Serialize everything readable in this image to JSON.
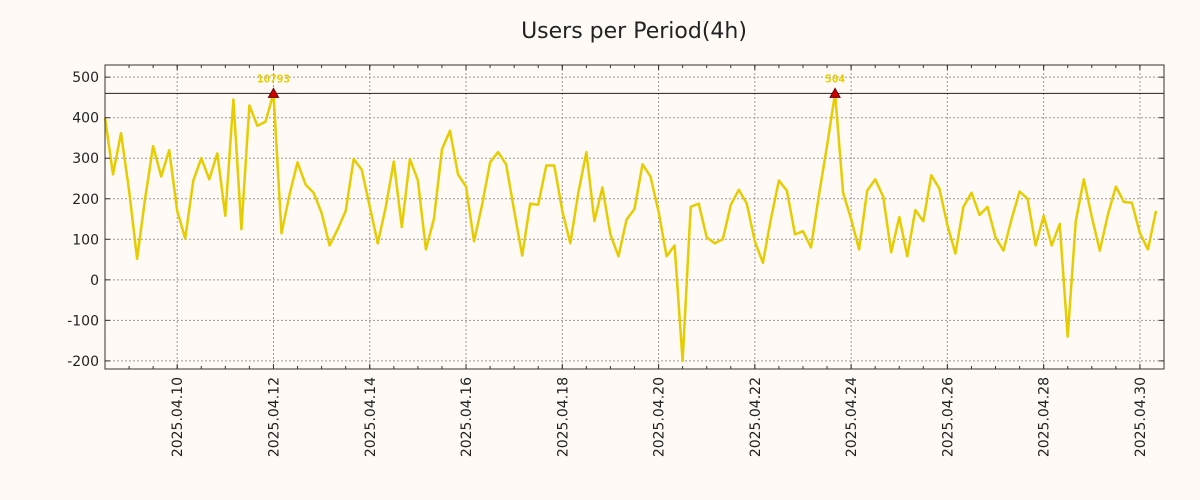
{
  "chart_data": {
    "type": "line",
    "title": "Users per Period(4h)",
    "xlabel": "",
    "ylabel": "",
    "x_range": [
      "2025-04-08 12:00",
      "2025-04-30 12:00"
    ],
    "ylim": [
      -220,
      530
    ],
    "y_ticks": [
      -200,
      -100,
      0,
      100,
      200,
      300,
      400,
      500
    ],
    "x_tick_labels": [
      "2025.04.10",
      "2025.04.12",
      "2025.04.14",
      "2025.04.16",
      "2025.04.18",
      "2025.04.20",
      "2025.04.22",
      "2025.04.24",
      "2025.04.26",
      "2025.04.28",
      "2025.04.30"
    ],
    "x_tick_dates": [
      "2025-04-10",
      "2025-04-12",
      "2025-04-14",
      "2025-04-16",
      "2025-04-18",
      "2025-04-20",
      "2025-04-22",
      "2025-04-24",
      "2025-04-26",
      "2025-04-28",
      "2025-04-30"
    ],
    "grid": true,
    "reference_line": 460,
    "series": [
      {
        "color": "#e6cc00",
        "points": [
          [
            "2025-04-08 12:00",
            400
          ],
          [
            "2025-04-08 16:00",
            260
          ],
          [
            "2025-04-08 20:00",
            362
          ],
          [
            "2025-04-09 00:00",
            220
          ],
          [
            "2025-04-09 04:00",
            52
          ],
          [
            "2025-04-09 08:00",
            200
          ],
          [
            "2025-04-09 12:00",
            330
          ],
          [
            "2025-04-09 16:00",
            255
          ],
          [
            "2025-04-09 20:00",
            320
          ],
          [
            "2025-04-10 00:00",
            170
          ],
          [
            "2025-04-10 04:00",
            102
          ],
          [
            "2025-04-10 08:00",
            245
          ],
          [
            "2025-04-10 12:00",
            300
          ],
          [
            "2025-04-10 16:00",
            248
          ],
          [
            "2025-04-10 20:00",
            312
          ],
          [
            "2025-04-11 00:00",
            158
          ],
          [
            "2025-04-11 04:00",
            445
          ],
          [
            "2025-04-11 08:00",
            125
          ],
          [
            "2025-04-11 12:00",
            430
          ],
          [
            "2025-04-11 16:00",
            380
          ],
          [
            "2025-04-11 20:00",
            390
          ],
          [
            "2025-04-12 00:00",
            460
          ],
          [
            "2025-04-12 04:00",
            115
          ],
          [
            "2025-04-12 08:00",
            210
          ],
          [
            "2025-04-12 12:00",
            290
          ],
          [
            "2025-04-12 16:00",
            235
          ],
          [
            "2025-04-12 20:00",
            215
          ],
          [
            "2025-04-13 00:00",
            165
          ],
          [
            "2025-04-13 04:00",
            85
          ],
          [
            "2025-04-13 08:00",
            125
          ],
          [
            "2025-04-13 12:00",
            170
          ],
          [
            "2025-04-13 16:00",
            298
          ],
          [
            "2025-04-13 20:00",
            272
          ],
          [
            "2025-04-14 00:00",
            180
          ],
          [
            "2025-04-14 04:00",
            90
          ],
          [
            "2025-04-14 08:00",
            180
          ],
          [
            "2025-04-14 12:00",
            292
          ],
          [
            "2025-04-14 16:00",
            130
          ],
          [
            "2025-04-14 20:00",
            298
          ],
          [
            "2025-04-15 00:00",
            245
          ],
          [
            "2025-04-15 04:00",
            75
          ],
          [
            "2025-04-15 08:00",
            150
          ],
          [
            "2025-04-15 12:00",
            322
          ],
          [
            "2025-04-15 16:00",
            368
          ],
          [
            "2025-04-15 20:00",
            260
          ],
          [
            "2025-04-16 00:00",
            230
          ],
          [
            "2025-04-16 04:00",
            95
          ],
          [
            "2025-04-16 08:00",
            185
          ],
          [
            "2025-04-16 12:00",
            290
          ],
          [
            "2025-04-16 16:00",
            315
          ],
          [
            "2025-04-16 20:00",
            285
          ],
          [
            "2025-04-17 00:00",
            170
          ],
          [
            "2025-04-17 04:00",
            60
          ],
          [
            "2025-04-17 08:00",
            188
          ],
          [
            "2025-04-17 12:00",
            185
          ],
          [
            "2025-04-17 16:00",
            282
          ],
          [
            "2025-04-17 20:00",
            282
          ],
          [
            "2025-04-18 00:00",
            170
          ],
          [
            "2025-04-18 04:00",
            90
          ],
          [
            "2025-04-18 08:00",
            215
          ],
          [
            "2025-04-18 12:00",
            315
          ],
          [
            "2025-04-18 16:00",
            145
          ],
          [
            "2025-04-18 20:00",
            228
          ],
          [
            "2025-04-19 00:00",
            112
          ],
          [
            "2025-04-19 04:00",
            58
          ],
          [
            "2025-04-19 08:00",
            148
          ],
          [
            "2025-04-19 12:00",
            175
          ],
          [
            "2025-04-19 16:00",
            285
          ],
          [
            "2025-04-19 20:00",
            255
          ],
          [
            "2025-04-20 00:00",
            168
          ],
          [
            "2025-04-20 04:00",
            58
          ],
          [
            "2025-04-20 08:00",
            85
          ],
          [
            "2025-04-20 12:00",
            -200
          ],
          [
            "2025-04-20 16:00",
            180
          ],
          [
            "2025-04-20 20:00",
            188
          ],
          [
            "2025-04-21 00:00",
            105
          ],
          [
            "2025-04-21 04:00",
            90
          ],
          [
            "2025-04-21 08:00",
            100
          ],
          [
            "2025-04-21 12:00",
            185
          ],
          [
            "2025-04-21 16:00",
            222
          ],
          [
            "2025-04-21 20:00",
            188
          ],
          [
            "2025-04-22 00:00",
            95
          ],
          [
            "2025-04-22 04:00",
            42
          ],
          [
            "2025-04-22 08:00",
            150
          ],
          [
            "2025-04-22 12:00",
            245
          ],
          [
            "2025-04-22 16:00",
            220
          ],
          [
            "2025-04-22 20:00",
            112
          ],
          [
            "2025-04-23 00:00",
            120
          ],
          [
            "2025-04-23 04:00",
            80
          ],
          [
            "2025-04-23 08:00",
            210
          ],
          [
            "2025-04-23 12:00",
            330
          ],
          [
            "2025-04-23 16:00",
            460
          ],
          [
            "2025-04-23 20:00",
            215
          ],
          [
            "2025-04-24 00:00",
            150
          ],
          [
            "2025-04-24 04:00",
            75
          ],
          [
            "2025-04-24 08:00",
            220
          ],
          [
            "2025-04-24 12:00",
            248
          ],
          [
            "2025-04-24 16:00",
            205
          ],
          [
            "2025-04-24 20:00",
            68
          ],
          [
            "2025-04-25 00:00",
            155
          ],
          [
            "2025-04-25 04:00",
            58
          ],
          [
            "2025-04-25 08:00",
            172
          ],
          [
            "2025-04-25 12:00",
            145
          ],
          [
            "2025-04-25 16:00",
            258
          ],
          [
            "2025-04-25 20:00",
            225
          ],
          [
            "2025-04-26 00:00",
            135
          ],
          [
            "2025-04-26 04:00",
            65
          ],
          [
            "2025-04-26 08:00",
            180
          ],
          [
            "2025-04-26 12:00",
            215
          ],
          [
            "2025-04-26 16:00",
            160
          ],
          [
            "2025-04-26 20:00",
            180
          ],
          [
            "2025-04-27 00:00",
            105
          ],
          [
            "2025-04-27 04:00",
            72
          ],
          [
            "2025-04-27 08:00",
            150
          ],
          [
            "2025-04-27 12:00",
            218
          ],
          [
            "2025-04-27 16:00",
            200
          ],
          [
            "2025-04-27 20:00",
            85
          ],
          [
            "2025-04-28 00:00",
            158
          ],
          [
            "2025-04-28 04:00",
            85
          ],
          [
            "2025-04-28 08:00",
            138
          ],
          [
            "2025-04-28 12:00",
            -140
          ],
          [
            "2025-04-28 16:00",
            145
          ],
          [
            "2025-04-28 20:00",
            248
          ],
          [
            "2025-04-29 00:00",
            155
          ],
          [
            "2025-04-29 04:00",
            72
          ],
          [
            "2025-04-29 08:00",
            160
          ],
          [
            "2025-04-29 12:00",
            230
          ],
          [
            "2025-04-29 16:00",
            192
          ],
          [
            "2025-04-29 20:00",
            190
          ],
          [
            "2025-04-30 00:00",
            115
          ],
          [
            "2025-04-30 04:00",
            75
          ],
          [
            "2025-04-30 08:00",
            170
          ]
        ]
      }
    ],
    "annotations": [
      {
        "label": "10793",
        "x": "2025-04-12 00:00",
        "y": 460,
        "marker_color": "#d40000",
        "label_color": "#e6cc00"
      },
      {
        "label": "504",
        "x": "2025-04-23 16:00",
        "y": 460,
        "marker_color": "#d40000",
        "label_color": "#e6cc00"
      }
    ]
  }
}
